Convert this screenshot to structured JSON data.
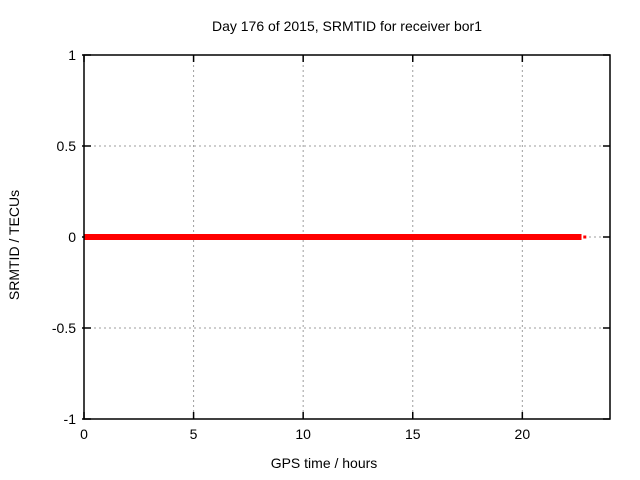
{
  "figure": {
    "background": "#ffffff"
  },
  "chart_data": {
    "type": "line",
    "title": "Day 176 of 2015, SRMTID for receiver bor1",
    "xlabel": "GPS time / hours",
    "ylabel": "SRMTID / TECUs",
    "xlim": [
      0,
      24
    ],
    "ylim": [
      -1,
      1
    ],
    "xticks": [
      0,
      5,
      10,
      15,
      20
    ],
    "yticks": [
      -1,
      -0.5,
      0,
      0.5,
      1
    ],
    "grid": true,
    "legend": "none",
    "series": [
      {
        "name": "SRMTID",
        "color": "#ff0000",
        "linewidth": 6,
        "x": [
          0,
          22.7
        ],
        "y": [
          0,
          0
        ],
        "trailing_point": {
          "x": 22.85,
          "y": 0
        }
      }
    ],
    "colors": {
      "grid": "#9e9e9e",
      "border": "#000000",
      "text": "#000000"
    }
  }
}
